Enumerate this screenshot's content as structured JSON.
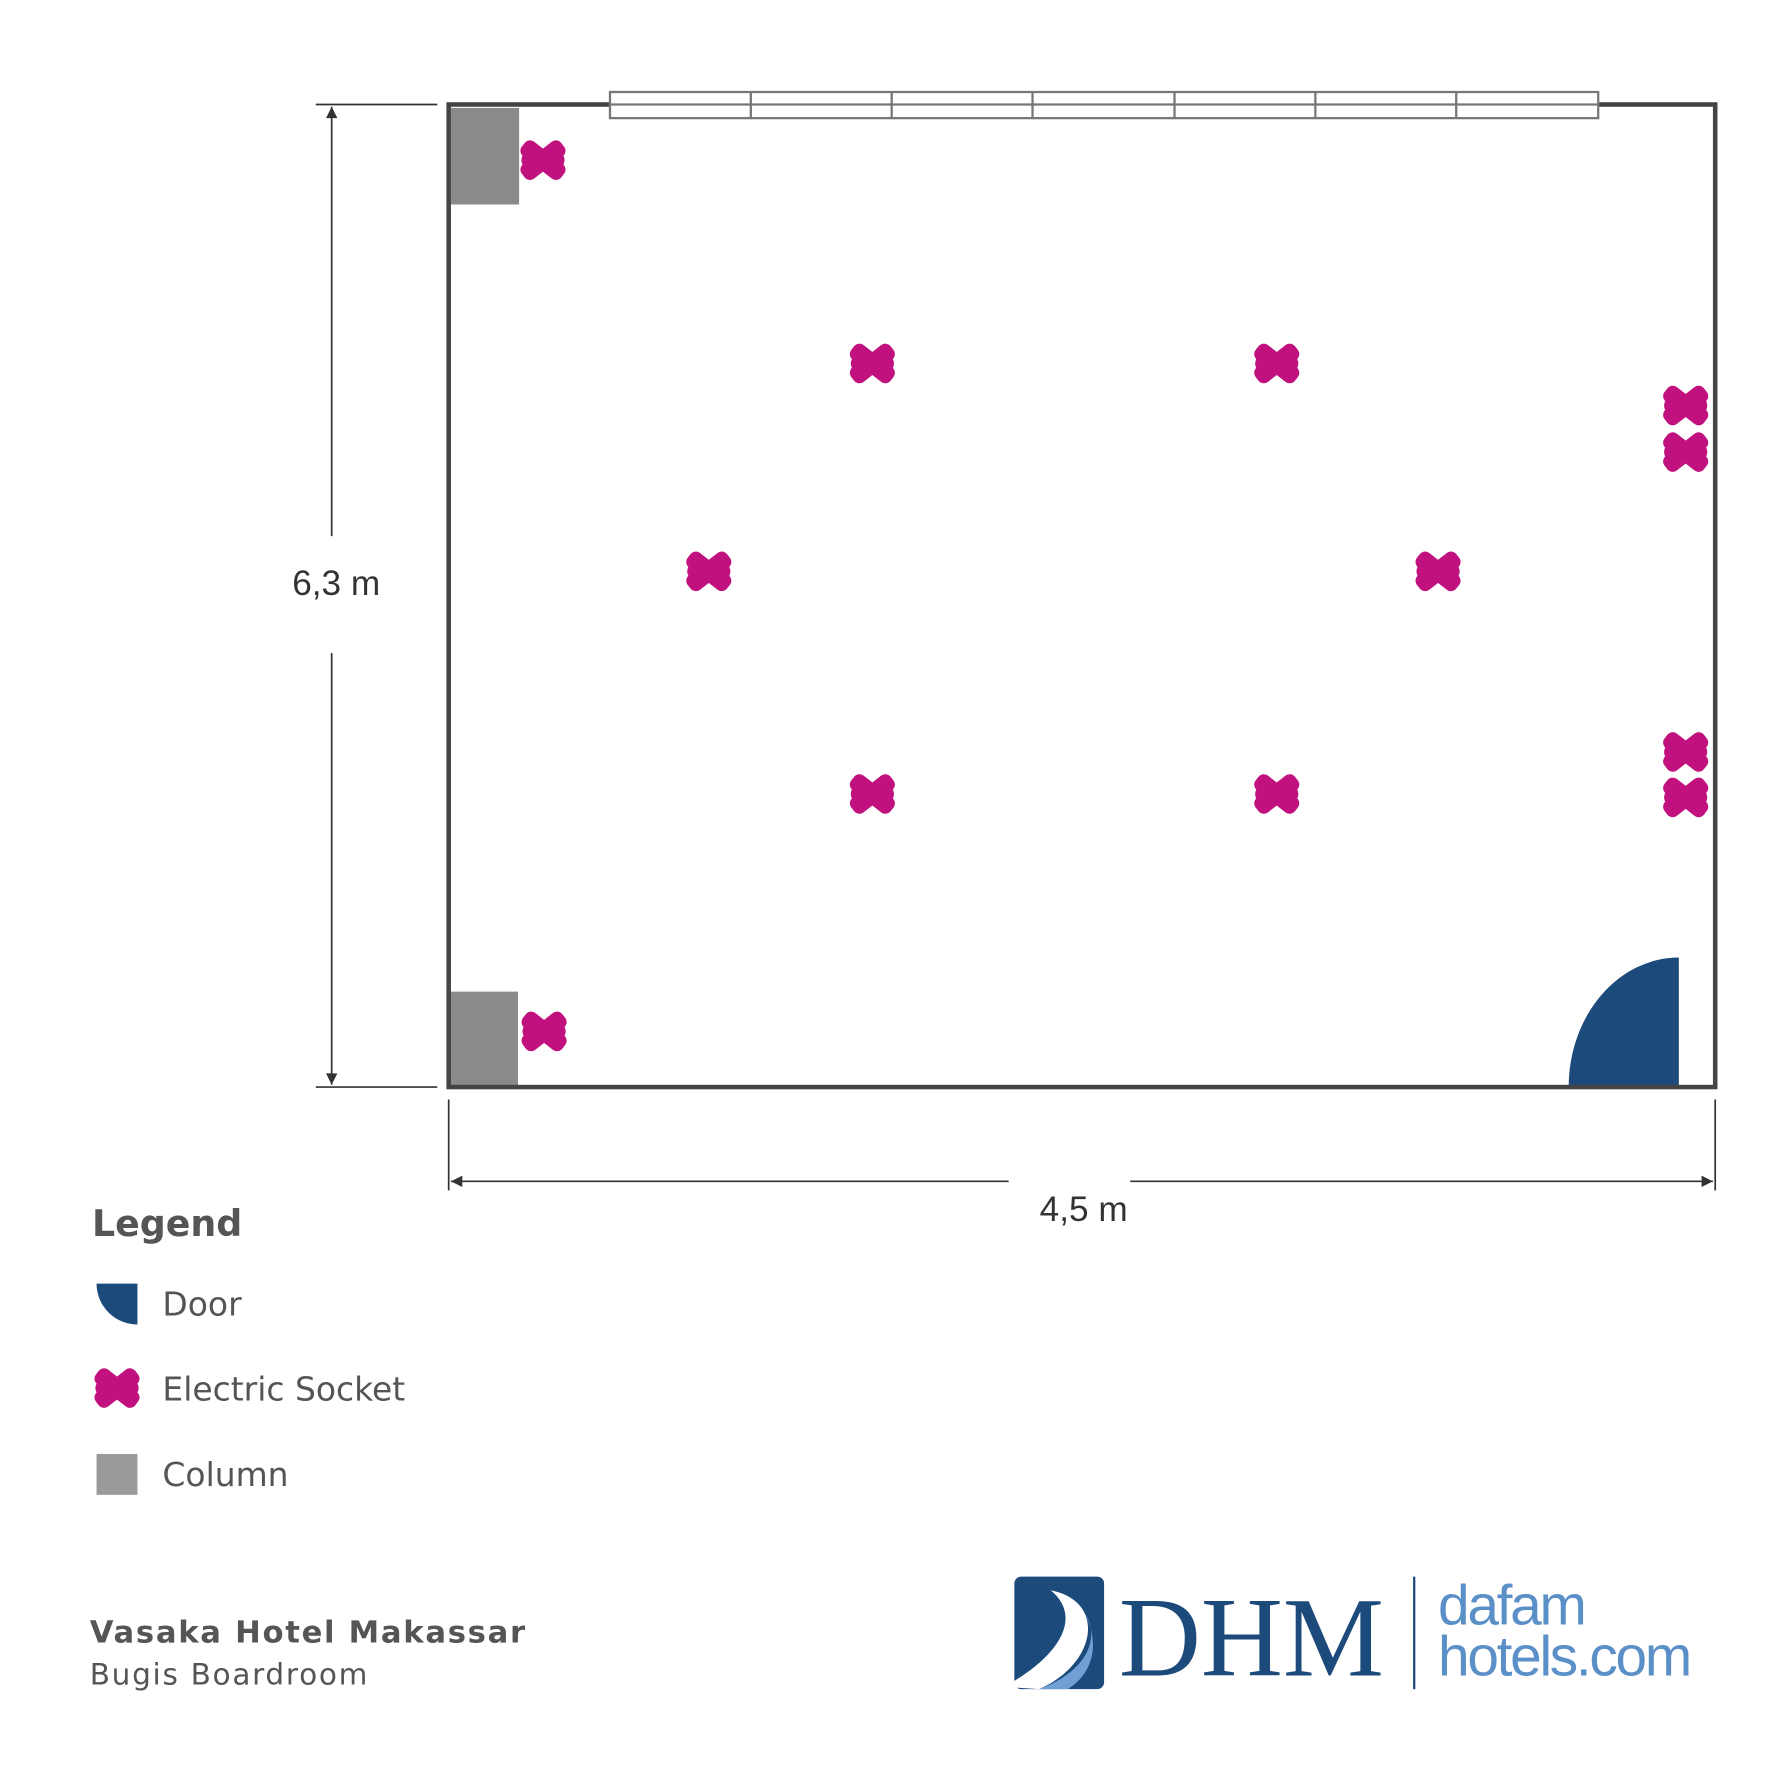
{
  "dimensions": {
    "height": "6,3 m",
    "width": "4,5 m"
  },
  "legend": {
    "title": "Legend",
    "items": [
      "Door",
      "Electric Socket",
      "Column"
    ]
  },
  "footer": {
    "hotel": "Vasaka Hotel Makassar",
    "room": "Bugis Boardroom"
  },
  "logo": {
    "mark": "DHM",
    "line1": "dafam",
    "line2": "hotels.com"
  }
}
